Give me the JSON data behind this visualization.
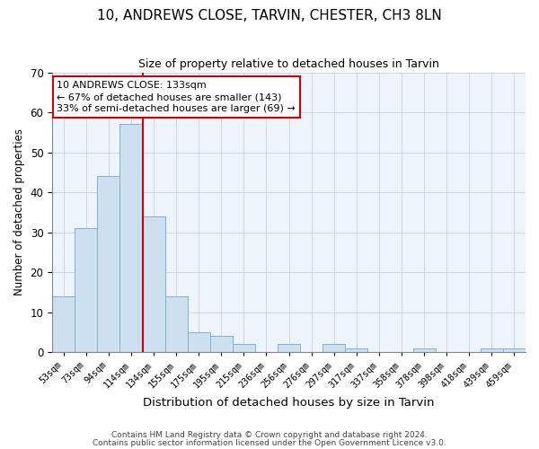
{
  "title1": "10, ANDREWS CLOSE, TARVIN, CHESTER, CH3 8LN",
  "title2": "Size of property relative to detached houses in Tarvin",
  "xlabel": "Distribution of detached houses by size in Tarvin",
  "ylabel": "Number of detached properties",
  "bar_labels": [
    "53sqm",
    "73sqm",
    "94sqm",
    "114sqm",
    "134sqm",
    "155sqm",
    "175sqm",
    "195sqm",
    "215sqm",
    "236sqm",
    "256sqm",
    "276sqm",
    "297sqm",
    "317sqm",
    "337sqm",
    "358sqm",
    "378sqm",
    "398sqm",
    "418sqm",
    "439sqm",
    "459sqm"
  ],
  "bar_values": [
    14,
    31,
    44,
    57,
    34,
    14,
    5,
    4,
    2,
    0,
    2,
    0,
    2,
    1,
    0,
    0,
    1,
    0,
    0,
    1,
    1
  ],
  "bar_color": "#cce0f0",
  "bar_edge_color": "#7fb0d0",
  "vline_x": 3.5,
  "vline_color": "#cc0000",
  "ylim": [
    0,
    70
  ],
  "yticks": [
    0,
    10,
    20,
    30,
    40,
    50,
    60,
    70
  ],
  "annotation_text": "10 ANDREWS CLOSE: 133sqm\n← 67% of detached houses are smaller (143)\n33% of semi-detached houses are larger (69) →",
  "annotation_box_edge": "#cc0000",
  "bg_color": "#eef4fb",
  "footer1": "Contains HM Land Registry data © Crown copyright and database right 2024.",
  "footer2": "Contains public sector information licensed under the Open Government Licence v3.0."
}
